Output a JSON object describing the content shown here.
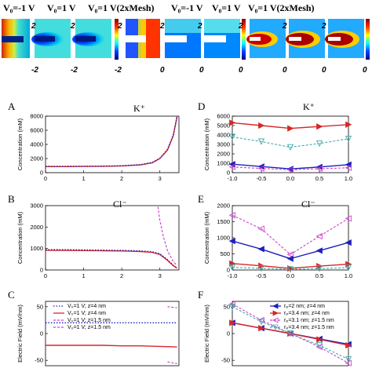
{
  "header": {
    "labels": [
      "V₀=-1 V",
      "V₀=1 V",
      "V₀=1 V(2xMesh)"
    ],
    "scales": [
      [
        "2",
        "-2"
      ],
      [
        "2",
        "0"
      ],
      [
        "2",
        "0"
      ]
    ]
  },
  "colors": {
    "red": "#d62728",
    "blue": "#1f1fbf",
    "magenta": "#cc44cc",
    "teal": "#44aaaa"
  },
  "chart_data": [
    {
      "id": "A",
      "type": "line",
      "title": "K⁺",
      "ylabel": "Concentration (mM)",
      "xlim": [
        0,
        3.5
      ],
      "ylim": [
        0,
        8000
      ],
      "xticks": [
        "0",
        "1",
        "2",
        "3"
      ],
      "yticks": [
        "0",
        "2000",
        "4000",
        "6000",
        "8000"
      ],
      "series": [
        {
          "style": "solid-red",
          "x": [
            0,
            0.5,
            1,
            1.5,
            2,
            2.5,
            2.8,
            3.0,
            3.2,
            3.35,
            3.45
          ],
          "y": [
            850,
            860,
            880,
            900,
            950,
            1100,
            1400,
            2000,
            3200,
            5200,
            8000
          ]
        },
        {
          "style": "dot-blue",
          "x": [
            0,
            0.5,
            1,
            1.5,
            2,
            2.5,
            2.8,
            3.0,
            3.2,
            3.35,
            3.45
          ],
          "y": [
            900,
            900,
            910,
            930,
            980,
            1150,
            1450,
            2050,
            3300,
            5300,
            7800
          ]
        }
      ]
    },
    {
      "id": "B",
      "type": "line",
      "title": "Cl⁻",
      "ylabel": "Concentration (mM)",
      "xlim": [
        0,
        3.5
      ],
      "ylim": [
        0,
        3000
      ],
      "xticks": [
        "0",
        "1",
        "2",
        "3"
      ],
      "yticks": [
        "0",
        "1000",
        "2000",
        "3000"
      ],
      "series": [
        {
          "style": "solid-red",
          "x": [
            0,
            0.5,
            1,
            1.5,
            2,
            2.5,
            2.8,
            3.0,
            3.2,
            3.35,
            3.45
          ],
          "y": [
            920,
            915,
            905,
            895,
            885,
            860,
            820,
            720,
            450,
            200,
            80
          ]
        },
        {
          "style": "dot-blue",
          "x": [
            0,
            0.5,
            1,
            1.5,
            2,
            2.5,
            2.8,
            3.0,
            3.2,
            3.35,
            3.45
          ],
          "y": [
            950,
            945,
            935,
            925,
            915,
            890,
            850,
            760,
            480,
            220,
            90
          ]
        },
        {
          "style": "dash-magenta",
          "x": [
            2.95,
            3.0,
            3.1,
            3.2,
            3.35,
            3.45
          ],
          "y": [
            2950,
            2300,
            1500,
            900,
            400,
            200
          ]
        }
      ]
    },
    {
      "id": "C",
      "type": "line",
      "title": "",
      "ylabel": "Electric Field (mV/nm)",
      "xlim": [
        0,
        3.5
      ],
      "ylim": [
        -60,
        60
      ],
      "yticks": [
        "50",
        "0",
        "-50"
      ],
      "legend": [
        "V₀=1 V; z=4 nm",
        "V₀=1 V; z=4 nm",
        "V₀=1 V; z=1.5 nm",
        "V₀=1 V; z=1.5 nm"
      ],
      "series": [
        {
          "style": "dot-blue",
          "x": [
            0,
            0.5,
            1,
            1.5,
            2,
            2.5,
            3.0,
            3.45
          ],
          "y": [
            20,
            20,
            20,
            20,
            20,
            20,
            20,
            20
          ]
        },
        {
          "style": "solid-red",
          "x": [
            0,
            0.5,
            1,
            1.5,
            2,
            2.5,
            3.0,
            3.45
          ],
          "y": [
            -22,
            -22,
            -22,
            -22,
            -23,
            -23,
            -24,
            -25
          ]
        },
        {
          "style": "dash-magenta",
          "x": [
            3.2,
            3.45
          ],
          "y": [
            50,
            48
          ]
        },
        {
          "style": "dash-magenta",
          "x": [
            3.2,
            3.45
          ],
          "y": [
            -53,
            -56
          ]
        }
      ]
    },
    {
      "id": "D",
      "type": "line",
      "title": "K⁺",
      "ylabel": "Concentration (mM)",
      "xlim": [
        -1.0,
        1.0
      ],
      "ylim": [
        0,
        6000
      ],
      "xticks": [
        "-1.0",
        "-0.5",
        "0.0",
        "0.5",
        "1.0"
      ],
      "yticks": [
        "0",
        "1000",
        "2000",
        "3000",
        "4000",
        "5000",
        "6000"
      ],
      "series": [
        {
          "style": "red-right-tri",
          "x": [
            -1,
            -0.5,
            0,
            0.5,
            1
          ],
          "y": [
            5300,
            5000,
            4700,
            4900,
            5100
          ]
        },
        {
          "style": "teal-open-down",
          "x": [
            -1,
            -0.5,
            0,
            0.5,
            1
          ],
          "y": [
            3800,
            3300,
            2700,
            3100,
            3600
          ]
        },
        {
          "style": "blue-left-tri",
          "x": [
            -1,
            -0.5,
            0,
            0.5,
            1
          ],
          "y": [
            900,
            650,
            400,
            600,
            850
          ]
        },
        {
          "style": "magenta-open-left",
          "x": [
            -1,
            -0.5,
            0,
            0.5,
            1
          ],
          "y": [
            600,
            450,
            300,
            420,
            520
          ]
        }
      ]
    },
    {
      "id": "E",
      "type": "line",
      "title": "Cl⁻",
      "ylabel": "Concentration (mM)",
      "xlim": [
        -1.0,
        1.0
      ],
      "ylim": [
        0,
        2000
      ],
      "xticks": [
        "-1.0",
        "-0.5",
        "0.0",
        "0.5",
        "1.0"
      ],
      "yticks": [
        "0",
        "500",
        "1000",
        "1500",
        "2000"
      ],
      "series": [
        {
          "style": "magenta-open-left",
          "x": [
            -1,
            -0.5,
            0,
            0.5,
            1
          ],
          "y": [
            1700,
            1280,
            480,
            1050,
            1600
          ]
        },
        {
          "style": "blue-left-tri",
          "x": [
            -1,
            -0.5,
            0,
            0.5,
            1
          ],
          "y": [
            900,
            650,
            350,
            600,
            850
          ]
        },
        {
          "style": "red-right-tri",
          "x": [
            -1,
            -0.5,
            0,
            0.5,
            1
          ],
          "y": [
            200,
            130,
            50,
            120,
            180
          ]
        },
        {
          "style": "teal-open-down",
          "x": [
            -1,
            -0.5,
            0,
            0.5,
            1
          ],
          "y": [
            80,
            50,
            20,
            45,
            70
          ]
        }
      ]
    },
    {
      "id": "F",
      "type": "line",
      "title": "",
      "ylabel": "Electric Field (mV/nm)",
      "xlim": [
        -1.0,
        1.0
      ],
      "ylim": [
        -60,
        60
      ],
      "yticks": [
        "50",
        "0",
        "-50"
      ],
      "legend": [
        "rₚ=2 nm; z=4 nm",
        "rₚ=3.4 nm; z=4 nm",
        "rₚ=3.1 nm; z=1.5 nm",
        "rₚ=3.4 nm; z=1.5 nm"
      ],
      "series": [
        {
          "style": "blue-left-tri",
          "x": [
            -1,
            -0.5,
            0,
            0.5,
            1
          ],
          "y": [
            20,
            10,
            0,
            -10,
            -20
          ]
        },
        {
          "style": "red-right-tri",
          "x": [
            -1,
            -0.5,
            0,
            0.5,
            1
          ],
          "y": [
            20,
            10,
            0,
            -11,
            -22
          ]
        },
        {
          "style": "magenta-open-left",
          "x": [
            -1,
            -0.5,
            0,
            0.5,
            1
          ],
          "y": [
            55,
            25,
            0,
            -25,
            -55
          ]
        },
        {
          "style": "teal-open-down",
          "x": [
            -1,
            -0.5,
            0,
            0.5,
            1
          ],
          "y": [
            50,
            22,
            0,
            -22,
            -48
          ]
        }
      ]
    }
  ]
}
